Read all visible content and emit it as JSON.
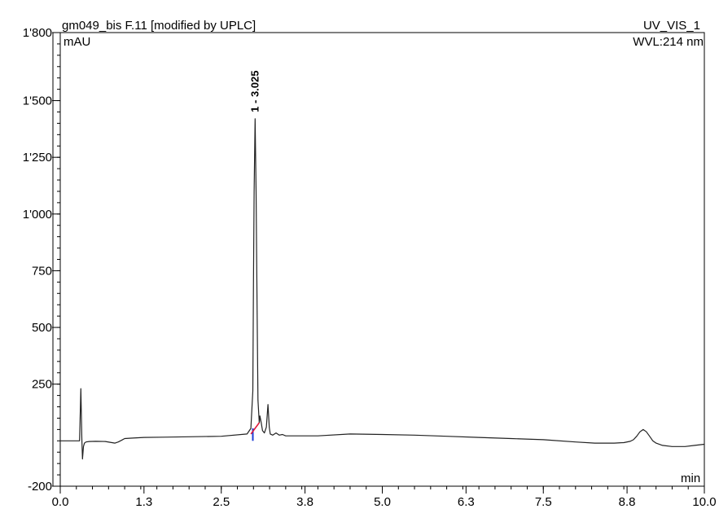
{
  "chart_data": {
    "type": "line",
    "title": "gm049_bis F.11 [modified by UPLC]",
    "channel": "UV_VIS_1",
    "wavelength": "WVL:214 nm",
    "ylabel": "mAU",
    "xlabel": "min",
    "xlim": [
      0.0,
      10.0
    ],
    "ylim": [
      -200,
      1800
    ],
    "xticks": [
      "0.0",
      "1.3",
      "2.5",
      "3.8",
      "5.0",
      "6.3",
      "7.5",
      "8.8",
      "10.0"
    ],
    "yticks": [
      "-200",
      "250",
      "500",
      "750",
      "1'000",
      "1'250",
      "1'500",
      "1'800"
    ],
    "peak_labels": [
      {
        "text": "1 - 3.025",
        "x": 3.025,
        "y": 1420
      }
    ],
    "series": [
      {
        "x": [
          0.0,
          0.3,
          0.32,
          0.335,
          0.345,
          0.36,
          0.375,
          0.4,
          0.45,
          0.55,
          0.7,
          0.85,
          0.9,
          0.95,
          1.0,
          1.1,
          1.3,
          1.6,
          2.0,
          2.5,
          2.9,
          2.96,
          2.99,
          3.0,
          3.01,
          3.025,
          3.04,
          3.055,
          3.07,
          3.09,
          3.1,
          3.12,
          3.14,
          3.17,
          3.2,
          3.225,
          3.245,
          3.26,
          3.3,
          3.35,
          3.4,
          3.45,
          3.5,
          3.6,
          4.0,
          4.5,
          5.0,
          5.5,
          6.0,
          6.5,
          7.0,
          7.5,
          8.0,
          8.3,
          8.6,
          8.75,
          8.85,
          8.9,
          8.95,
          9.0,
          9.05,
          9.1,
          9.15,
          9.2,
          9.25,
          9.35,
          9.5,
          9.7,
          9.85,
          10.0
        ],
        "values": [
          0,
          0,
          230,
          10,
          -80,
          -25,
          -10,
          -5,
          -3,
          -2,
          -3,
          -10,
          -5,
          2,
          10,
          12,
          15,
          16,
          18,
          20,
          30,
          55,
          220,
          700,
          1100,
          1420,
          1100,
          600,
          180,
          80,
          110,
          80,
          45,
          35,
          60,
          160,
          60,
          30,
          25,
          35,
          25,
          28,
          22,
          22,
          22,
          30,
          28,
          25,
          20,
          15,
          10,
          5,
          -5,
          -10,
          -10,
          -8,
          -2,
          5,
          20,
          40,
          50,
          40,
          20,
          0,
          -10,
          -20,
          -25,
          -25,
          -20,
          -15
        ]
      }
    ]
  },
  "integration_marks": [
    {
      "color": "#1f3fd6",
      "x": [
        2.99,
        3.0
      ]
    },
    {
      "color": "#e0173a",
      "x": [
        2.96,
        3.09
      ]
    }
  ]
}
